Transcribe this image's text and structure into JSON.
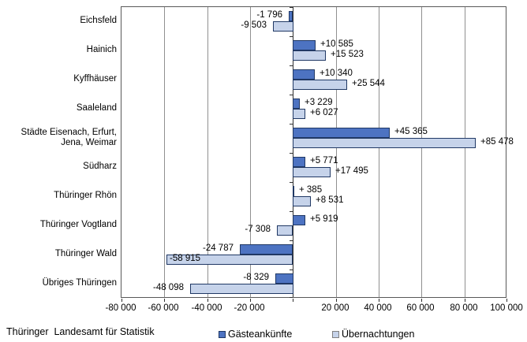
{
  "chart_data": {
    "type": "bar",
    "orientation": "horizontal",
    "title": "",
    "xlabel": "",
    "ylabel": "",
    "grid": true,
    "legend_position": "bottom",
    "categories": [
      "Eichsfeld",
      "Hainich",
      "Kyffhäuser",
      "Saaleland",
      "Städte Eisenach, Erfurt,\nJena, Weimar",
      "Südharz",
      "Thüringer Rhön",
      "Thüringer Vogtland",
      "Thüringer Wald",
      "Übriges Thüringen"
    ],
    "series": [
      {
        "name": "Gästeankünfte",
        "color": "#4d73c2",
        "border_color": "#203864",
        "values": [
          -1796,
          10585,
          10340,
          3229,
          45365,
          5771,
          385,
          5919,
          -24787,
          -8329
        ],
        "labels": [
          "-1 796",
          "+10 585",
          "+10 340",
          "+3 229",
          "+45 365",
          "+5 771",
          "+ 385",
          "+5 919",
          "-24 787",
          "-8 329"
        ],
        "label_inside_indices": []
      },
      {
        "name": "Übernachtungen",
        "color": "#c6d3ea",
        "border_color": "#203864",
        "values": [
          -9503,
          15523,
          25544,
          6027,
          85478,
          17495,
          8531,
          -7308,
          -58915,
          -48098
        ],
        "labels": [
          "-9 503",
          "+15 523",
          "+25 544",
          "+6 027",
          "+85 478",
          "+17 495",
          "+8 531",
          "-7 308",
          "-58 915",
          "-48 098"
        ],
        "label_inside_indices": [
          8
        ]
      }
    ],
    "xlim": [
      -80000,
      100000
    ],
    "x_tick_step": 20000,
    "x_ticks": [
      -80000,
      -60000,
      -40000,
      -20000,
      0,
      20000,
      40000,
      60000,
      80000,
      100000
    ],
    "x_tick_labels": [
      {
        "value": -80000,
        "label": "-80 000"
      },
      {
        "value": -60000,
        "label": "-60 000"
      },
      {
        "value": -40000,
        "label": "-40 000"
      },
      {
        "value": -20000,
        "label": "-20 000"
      },
      {
        "value": 20000,
        "label": "20 000"
      },
      {
        "value": 40000,
        "label": "40 000"
      },
      {
        "value": 60000,
        "label": "60 000"
      },
      {
        "value": 80000,
        "label": "80 000"
      },
      {
        "value": 100000,
        "label": "100 000"
      }
    ],
    "gridline_values": [
      -60000,
      -40000,
      -20000,
      20000,
      40000,
      60000,
      80000
    ]
  },
  "style": {
    "background": "#ffffff",
    "gridline_color": "#909090",
    "axis_color": "#303030",
    "plot_border_color": "#595959",
    "text_color": "#000000"
  },
  "footer": {
    "source": "Thüringer  Landesamt für Statistik"
  }
}
